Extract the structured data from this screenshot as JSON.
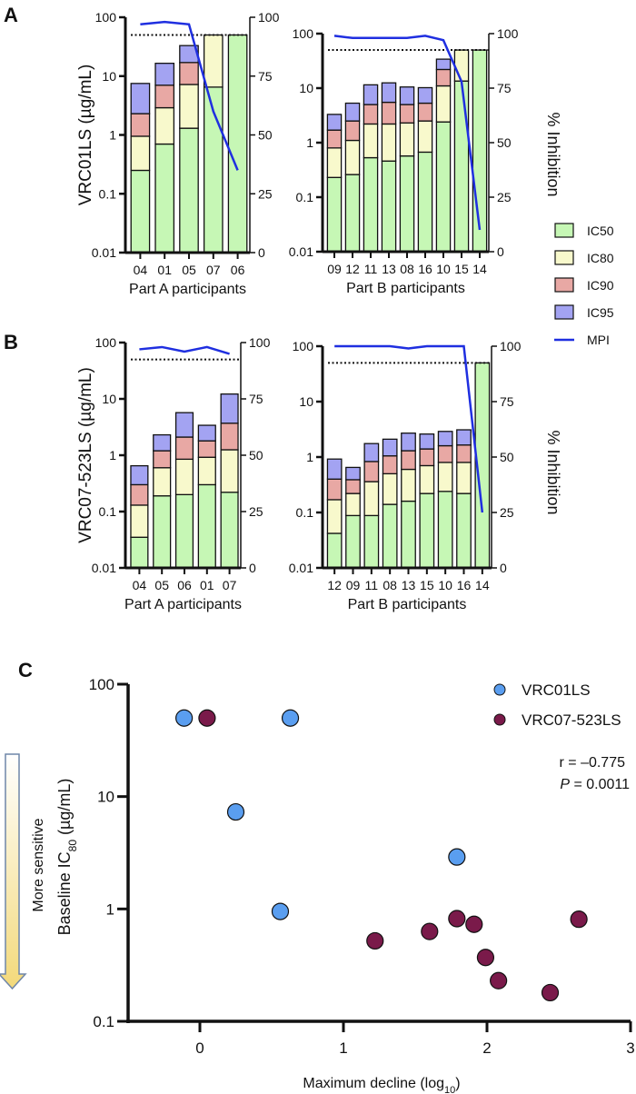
{
  "panel_labels": {
    "a": "A",
    "b": "B",
    "c": "C"
  },
  "colors": {
    "IC50": "#c6f7b5",
    "IC80": "#f8f9cc",
    "IC90": "#e8a8a4",
    "IC95": "#a3a3f2",
    "MPI": "#1f2fe0",
    "VRC01LS": "#5a9ef0",
    "VRC07-523LS": "#7a1a4a"
  },
  "legend": [
    "IC50",
    "IC80",
    "IC90",
    "IC95",
    "MPI"
  ],
  "right_axis_label": "% Inhibition",
  "chart_data": [
    {
      "type": "bar",
      "stacked": true,
      "panel": "A",
      "ylabel": "VRC01LS (µg/mL)",
      "xlabel": "Part A participants",
      "y_scale": "log",
      "ylim": [
        0.01,
        100
      ],
      "y_ticks": [
        "0.01",
        "0.1",
        "1",
        "10",
        "100"
      ],
      "y2lim": [
        0,
        100
      ],
      "y2_ticks": [
        "0",
        "25",
        "50",
        "75",
        "100"
      ],
      "threshold": 50,
      "categories": [
        "04",
        "01",
        "05",
        "07",
        "06"
      ],
      "series": [
        {
          "name": "IC50",
          "values": [
            0.25,
            0.7,
            1.3,
            6.5,
            50
          ]
        },
        {
          "name": "IC80",
          "values": [
            0.95,
            2.9,
            7.2,
            50,
            50
          ]
        },
        {
          "name": "IC90",
          "values": [
            2.3,
            7,
            17,
            50,
            50
          ]
        },
        {
          "name": "IC95",
          "values": [
            7.5,
            16.5,
            33,
            50,
            50
          ]
        },
        {
          "name": "MPI",
          "values": [
            97,
            98,
            97,
            60,
            35
          ]
        }
      ]
    },
    {
      "type": "bar",
      "stacked": true,
      "panel": "A",
      "ylabel": "",
      "xlabel": "Part B participants",
      "y_scale": "log",
      "ylim": [
        0.01,
        100
      ],
      "y_ticks": [
        "0.01",
        "0.1",
        "1",
        "10",
        "100"
      ],
      "y2lim": [
        0,
        100
      ],
      "y2_ticks": [
        "0",
        "25",
        "50",
        "75",
        "100"
      ],
      "threshold": 50,
      "categories": [
        "09",
        "12",
        "11",
        "13",
        "08",
        "16",
        "10",
        "15",
        "14"
      ],
      "series": [
        {
          "name": "IC50",
          "values": [
            0.23,
            0.26,
            0.53,
            0.46,
            0.57,
            0.67,
            2.4,
            13.5,
            50
          ]
        },
        {
          "name": "IC80",
          "values": [
            0.8,
            1.1,
            2.2,
            2.2,
            2.3,
            2.5,
            11,
            50,
            50
          ]
        },
        {
          "name": "IC90",
          "values": [
            1.7,
            2.5,
            5,
            5.5,
            5,
            5.3,
            22,
            50,
            50
          ]
        },
        {
          "name": "IC95",
          "values": [
            3.3,
            5.3,
            11.5,
            12.5,
            10.5,
            10.2,
            34,
            50,
            50
          ]
        },
        {
          "name": "MPI",
          "values": [
            99,
            98,
            98,
            98,
            98,
            99,
            97,
            78,
            10
          ]
        }
      ]
    },
    {
      "type": "bar",
      "stacked": true,
      "panel": "B",
      "ylabel": "VRC07-523LS (µg/mL)",
      "xlabel": "Part A participants",
      "y_scale": "log",
      "ylim": [
        0.01,
        100
      ],
      "y_ticks": [
        "0.01",
        "0.1",
        "1",
        "10",
        "100"
      ],
      "y2lim": [
        0,
        100
      ],
      "y2_ticks": [
        "0",
        "25",
        "50",
        "75",
        "100"
      ],
      "threshold": 50,
      "categories": [
        "04",
        "05",
        "06",
        "01",
        "07"
      ],
      "series": [
        {
          "name": "IC50",
          "values": [
            0.035,
            0.19,
            0.2,
            0.3,
            0.22
          ]
        },
        {
          "name": "IC80",
          "values": [
            0.13,
            0.6,
            0.85,
            0.92,
            1.25
          ]
        },
        {
          "name": "IC90",
          "values": [
            0.3,
            1.2,
            2.1,
            1.8,
            3.7
          ]
        },
        {
          "name": "IC95",
          "values": [
            0.65,
            2.3,
            5.7,
            3.4,
            12.2
          ]
        },
        {
          "name": "MPI",
          "values": [
            97,
            98,
            96,
            98,
            95
          ]
        }
      ]
    },
    {
      "type": "bar",
      "stacked": true,
      "panel": "B",
      "ylabel": "",
      "xlabel": "Part B participants",
      "y_scale": "log",
      "ylim": [
        0.01,
        100
      ],
      "y_ticks": [
        "0.01",
        "0.1",
        "1",
        "10",
        "100"
      ],
      "y2lim": [
        0,
        100
      ],
      "y2_ticks": [
        "0",
        "25",
        "50",
        "75",
        "100"
      ],
      "threshold": 50,
      "categories": [
        "12",
        "09",
        "11",
        "08",
        "13",
        "15",
        "10",
        "16",
        "14"
      ],
      "series": [
        {
          "name": "IC50",
          "values": [
            0.042,
            0.088,
            0.088,
            0.14,
            0.16,
            0.22,
            0.24,
            0.22,
            50
          ]
        },
        {
          "name": "IC80",
          "values": [
            0.17,
            0.22,
            0.36,
            0.5,
            0.6,
            0.7,
            0.8,
            0.8,
            50
          ]
        },
        {
          "name": "IC90",
          "values": [
            0.4,
            0.39,
            0.83,
            1.05,
            1.3,
            1.4,
            1.6,
            1.65,
            50
          ]
        },
        {
          "name": "IC95",
          "values": [
            0.92,
            0.65,
            1.75,
            2.1,
            2.7,
            2.6,
            2.9,
            3.1,
            50
          ]
        },
        {
          "name": "MPI",
          "values": [
            100,
            100,
            100,
            100,
            99,
            100,
            100,
            100,
            25
          ]
        }
      ]
    },
    {
      "type": "scatter",
      "panel": "C",
      "xlabel_main": "Maximum decline (log",
      "xlabel_sub": "10",
      "xlabel_end": ")",
      "ylabel_main": "Baseline IC",
      "ylabel_sub": "80",
      "ylabel_end": " (µg/mL)",
      "side_label": "More sensitive",
      "xlim": [
        -0.5,
        3
      ],
      "x_ticks": [
        "0",
        "1",
        "2",
        "3"
      ],
      "y_scale": "log",
      "ylim": [
        0.1,
        100
      ],
      "y_ticks": [
        "0.1",
        "1",
        "10",
        "100"
      ],
      "legend_position": "top-right",
      "annotation": {
        "r": "r = –0.775",
        "p_label": "P",
        "p_value": " = 0.0011"
      },
      "series": [
        {
          "name": "VRC01LS",
          "points": [
            [
              -0.11,
              50
            ],
            [
              0.63,
              50
            ],
            [
              0.25,
              7.3
            ],
            [
              0.56,
              0.95
            ],
            [
              1.79,
              2.9
            ]
          ]
        },
        {
          "name": "VRC07-523LS",
          "points": [
            [
              0.05,
              50
            ],
            [
              1.22,
              0.52
            ],
            [
              1.6,
              0.63
            ],
            [
              1.79,
              0.82
            ],
            [
              1.91,
              0.73
            ],
            [
              1.99,
              0.37
            ],
            [
              2.08,
              0.23
            ],
            [
              2.44,
              0.18
            ],
            [
              2.64,
              0.81
            ]
          ]
        }
      ]
    }
  ]
}
